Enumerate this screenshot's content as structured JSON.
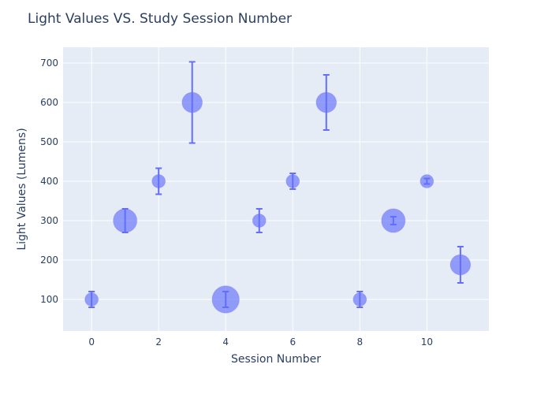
{
  "chart_data": {
    "type": "scatter",
    "title": "Light Values VS. Study Session Number",
    "xlabel": "Session Number",
    "ylabel": "Light Values (Lumens)",
    "xlim": [
      -0.85,
      11.85
    ],
    "ylim": [
      20,
      740
    ],
    "xticks": [
      0,
      2,
      4,
      6,
      8,
      10
    ],
    "yticks": [
      100,
      200,
      300,
      400,
      500,
      600,
      700
    ],
    "grid": true,
    "colors": {
      "plot_bg": "#e5ecf6",
      "grid": "#ffffff",
      "marker": "#636efa",
      "text": "#2a3f5f"
    },
    "series": [
      {
        "points": [
          {
            "x": 0,
            "y": 100,
            "err_minus": 20,
            "err_plus": 20,
            "size": 2
          },
          {
            "x": 1,
            "y": 300,
            "err_minus": 30,
            "err_plus": 30,
            "size": 5
          },
          {
            "x": 2,
            "y": 400,
            "err_minus": 33,
            "err_plus": 33,
            "size": 2
          },
          {
            "x": 3,
            "y": 600,
            "err_minus": 103,
            "err_plus": 103,
            "size": 4
          },
          {
            "x": 4,
            "y": 100,
            "err_minus": 20,
            "err_plus": 20,
            "size": 6
          },
          {
            "x": 5,
            "y": 300,
            "err_minus": 30,
            "err_plus": 30,
            "size": 2
          },
          {
            "x": 6,
            "y": 400,
            "err_minus": 20,
            "err_plus": 20,
            "size": 2
          },
          {
            "x": 7,
            "y": 600,
            "err_minus": 70,
            "err_plus": 70,
            "size": 4
          },
          {
            "x": 8,
            "y": 100,
            "err_minus": 20,
            "err_plus": 20,
            "size": 2
          },
          {
            "x": 9,
            "y": 300,
            "err_minus": 10,
            "err_plus": 10,
            "size": 5
          },
          {
            "x": 10,
            "y": 400,
            "err_minus": 7,
            "err_plus": 7,
            "size": 2
          },
          {
            "x": 11,
            "y": 188,
            "err_minus": 46,
            "err_plus": 46,
            "size": 4
          }
        ]
      }
    ]
  }
}
